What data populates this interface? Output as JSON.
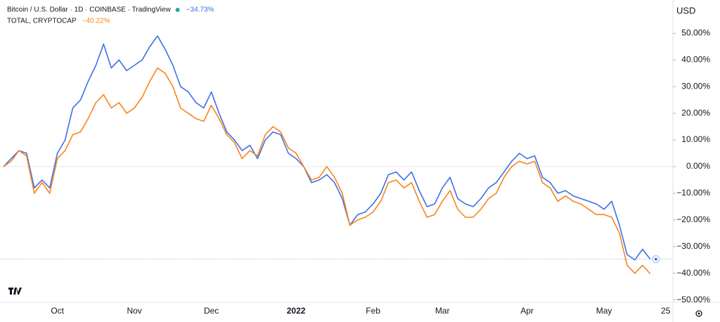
{
  "chart_data": {
    "type": "line",
    "y_axis_label": "USD",
    "categories": [
      null,
      null,
      null,
      null,
      null,
      null,
      null,
      "Oct",
      null,
      null,
      null,
      null,
      null,
      null,
      null,
      null,
      null,
      "Nov",
      null,
      null,
      null,
      null,
      null,
      null,
      null,
      null,
      null,
      "Dec",
      null,
      null,
      null,
      null,
      null,
      null,
      null,
      null,
      null,
      null,
      "2022",
      null,
      null,
      null,
      null,
      null,
      null,
      null,
      null,
      null,
      "Feb",
      null,
      null,
      null,
      null,
      null,
      null,
      null,
      null,
      "Mar",
      null,
      null,
      null,
      null,
      null,
      null,
      null,
      null,
      null,
      null,
      "Apr",
      null,
      null,
      null,
      null,
      null,
      null,
      null,
      null,
      null,
      "May",
      null,
      null,
      null,
      null,
      null,
      null,
      null,
      "25"
    ],
    "series": [
      {
        "name": "Bitcoin / U.S. Dollar · 1D · COINBASE · TradingView",
        "color": "#3f6fe6",
        "last_value_label": "−34.73%",
        "values": [
          0,
          3,
          6,
          5,
          -8,
          -5,
          -8,
          5,
          10,
          22,
          25,
          32,
          38,
          46,
          37,
          40,
          36,
          38,
          40,
          45,
          49,
          44,
          38,
          30,
          28,
          24,
          22,
          28,
          20,
          13,
          10,
          6,
          8,
          3,
          10,
          13,
          12,
          5,
          3,
          0,
          -6,
          -5,
          -3,
          -6,
          -12,
          -22,
          -18,
          -17,
          -14,
          -10,
          -3,
          -2,
          -5,
          -2,
          -9,
          -15,
          -14,
          -8,
          -4,
          -12,
          -14,
          -15,
          -12,
          -8,
          -6,
          -2,
          2,
          5,
          3,
          4,
          -4,
          -6,
          -10,
          -9,
          -11,
          -12,
          -13,
          -14,
          -16,
          -13,
          -22,
          -33,
          -35,
          -31,
          -34.73,
          null,
          null
        ]
      },
      {
        "name": "TOTAL, CRYPTOCAP",
        "color": "#f7861c",
        "last_value_label": "−40.22%",
        "values": [
          0,
          2,
          6,
          4,
          -10,
          -6,
          -10,
          3,
          6,
          12,
          13,
          18,
          24,
          27,
          22,
          24,
          20,
          22,
          26,
          32,
          37,
          35,
          30,
          22,
          20,
          18,
          17,
          23,
          18,
          12,
          9,
          3,
          6,
          4,
          12,
          15,
          13,
          7,
          5,
          0,
          -5,
          -4,
          0,
          -4,
          -10,
          -22,
          -20,
          -19,
          -17,
          -13,
          -6,
          -5,
          -8,
          -6,
          -13,
          -19,
          -18,
          -13,
          -9,
          -16,
          -19,
          -19,
          -16,
          -12,
          -10,
          -4,
          0,
          2,
          1,
          2,
          -6,
          -8,
          -13,
          -11,
          -13,
          -14,
          -16,
          -18,
          -18,
          -19,
          -25,
          -37,
          -40,
          -37,
          -40.22,
          null,
          null
        ]
      }
    ],
    "ylim": [
      -50.9,
      62.5
    ],
    "yticks": [
      {
        "value": -50,
        "label": "−50.00%"
      },
      {
        "value": -40,
        "label": "−40.00%"
      },
      {
        "value": -30,
        "label": "−30.00%"
      },
      {
        "value": -20,
        "label": "−20.00%"
      },
      {
        "value": -10,
        "label": "−10.00%"
      },
      {
        "value": 0,
        "label": "0.00%"
      },
      {
        "value": 10,
        "label": "10.00%"
      },
      {
        "value": 20,
        "label": "20.00%"
      },
      {
        "value": 30,
        "label": "30.00%"
      },
      {
        "value": 40,
        "label": "40.00%"
      },
      {
        "value": 50,
        "label": "50.00%"
      }
    ],
    "grid": false
  }
}
